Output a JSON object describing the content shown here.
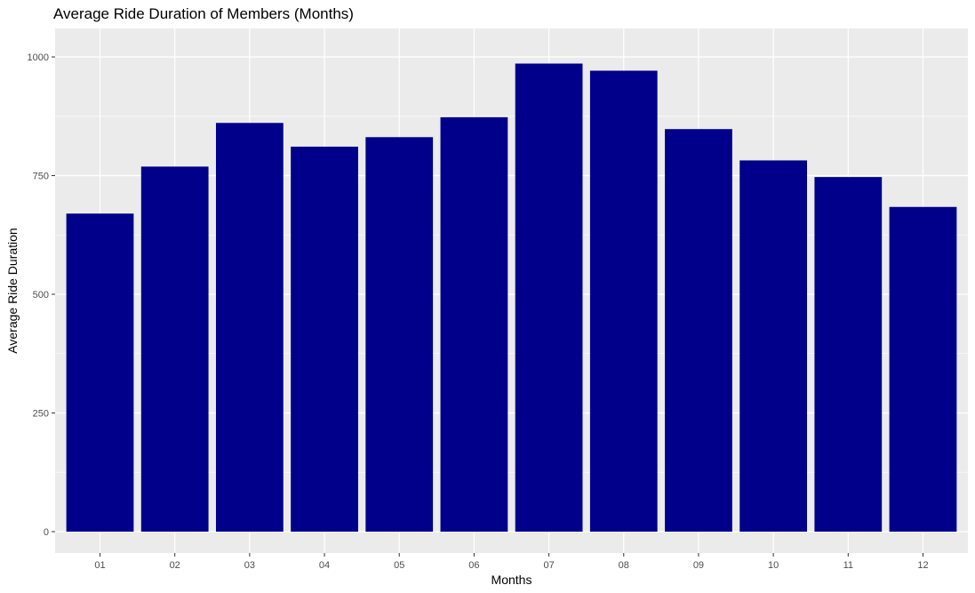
{
  "chart_data": {
    "type": "bar",
    "title": "Average Ride Duration of Members (Months)",
    "xlabel": "Months",
    "ylabel": "Average Ride Duration",
    "categories": [
      "01",
      "02",
      "03",
      "04",
      "05",
      "06",
      "07",
      "08",
      "09",
      "10",
      "11",
      "12"
    ],
    "values": [
      670,
      769,
      861,
      811,
      831,
      873,
      986,
      971,
      848,
      782,
      747,
      684
    ],
    "ylim": [
      0,
      1000
    ],
    "yticks": [
      0,
      250,
      500,
      750,
      1000
    ],
    "grid": true,
    "legend": "none",
    "colors": {
      "bar": "#00008B",
      "panel": "#EBEBEB",
      "grid": "#FFFFFF",
      "tick_text": "#4D4D4D",
      "tick_mark": "#333333"
    }
  }
}
